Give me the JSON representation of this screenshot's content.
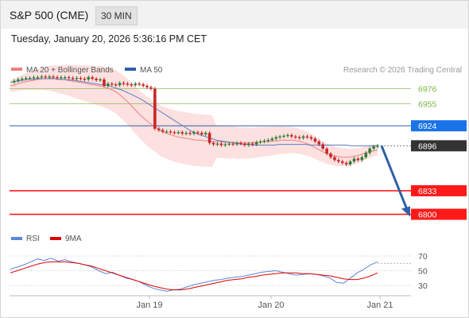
{
  "header": {
    "title": "S&P 500 (CME)",
    "timeframe": "30 MIN"
  },
  "datetime": "Tuesday, January 20, 2026 5:36:16 PM CET",
  "legend": {
    "items": [
      {
        "label": "MA 20 + Bollinger Bands",
        "color": "#f08080"
      },
      {
        "label": "MA 50",
        "color": "#2f5fa8"
      }
    ],
    "credit": "Research © 2026 Trading Central"
  },
  "rsi_legend": {
    "items": [
      {
        "label": "RSI",
        "color": "#5b86d6"
      },
      {
        "label": "9MA",
        "color": "#e00000"
      }
    ]
  },
  "colors": {
    "up": "#2e7d32",
    "down": "#c62828",
    "support": "#ff1a1a",
    "resistance": "#7cb342",
    "pivot": "#2f5fa8",
    "current": "#333333",
    "forecast_arrow": "#2f5fa8",
    "bollinger_fill": "#fde0e0"
  },
  "chart_data": [
    {
      "type": "candlestick",
      "title": "S&P 500 (CME)",
      "ylim": [
        6785,
        6990
      ],
      "x_tick_labels": [
        "Jan 19",
        "Jan 20",
        "Jan 21"
      ],
      "levels": [
        {
          "label": "6976",
          "value": 6976,
          "kind": "resistance"
        },
        {
          "label": "6955",
          "value": 6955,
          "kind": "resistance"
        },
        {
          "label": "6924",
          "value": 6924,
          "kind": "pivot"
        },
        {
          "label": "6896",
          "value": 6896,
          "kind": "current"
        },
        {
          "label": "6833",
          "value": 6833,
          "kind": "support"
        },
        {
          "label": "6800",
          "value": 6800,
          "kind": "support"
        }
      ],
      "forecast": {
        "from": 6896,
        "to": 6800,
        "direction": "down"
      },
      "close_series": [
        6985,
        6987,
        6989,
        6990,
        6991,
        6991,
        6992,
        6992,
        6993,
        6992,
        6993,
        6992,
        6991,
        6992,
        6992,
        6991,
        6990,
        6991,
        6990,
        6989,
        6992,
        6990,
        6988,
        6989,
        6980,
        6983,
        6982,
        6981,
        6984,
        6983,
        6982,
        6981,
        6983,
        6982,
        6980,
        6978,
        6976,
        6920,
        6918,
        6916,
        6916,
        6915,
        6914,
        6915,
        6913,
        6914,
        6913,
        6915,
        6914,
        6912,
        6914,
        6900,
        6898,
        6899,
        6897,
        6898,
        6899,
        6898,
        6900,
        6899,
        6897,
        6899,
        6898,
        6901,
        6902,
        6903,
        6904,
        6906,
        6908,
        6909,
        6910,
        6911,
        6909,
        6908,
        6907,
        6909,
        6908,
        6906,
        6902,
        6898,
        6892,
        6885,
        6880,
        6876,
        6874,
        6872,
        6870,
        6874,
        6878,
        6876,
        6880,
        6886,
        6892,
        6895,
        6896
      ],
      "ma20": [
        6980,
        6981,
        6983,
        6985,
        6986,
        6987,
        6988,
        6989,
        6990,
        6990,
        6991,
        6990,
        6989,
        6989,
        6988,
        6987,
        6986,
        6985,
        6984,
        6983,
        6982,
        6981,
        6980,
        6979,
        6977,
        6975,
        6972,
        6968,
        6963,
        6958,
        6952,
        6946,
        6940,
        6935,
        6930,
        6926,
        6922,
        6918,
        6915,
        6913,
        6911,
        6909,
        6908,
        6907,
        6906,
        6905,
        6904,
        6904,
        6903,
        6903,
        6902,
        6902,
        6902,
        6901,
        6901,
        6901,
        6900,
        6900,
        6900,
        6900,
        6900,
        6901,
        6901,
        6902,
        6902,
        6903,
        6903,
        6904,
        6904,
        6904,
        6904,
        6903,
        6902,
        6900,
        6898,
        6895,
        6892,
        6889,
        6886,
        6884,
        6882,
        6881,
        6880,
        6880,
        6880,
        6881,
        6882,
        6884,
        6886,
        6888,
        6889,
        6890
      ],
      "ma50": [
        6985,
        6986,
        6987,
        6988,
        6989,
        6989,
        6990,
        6990,
        6990,
        6990,
        6990,
        6989,
        6989,
        6988,
        6988,
        6987,
        6986,
        6985,
        6984,
        6983,
        6982,
        6981,
        6980,
        6978,
        6976,
        6974,
        6971,
        6968,
        6965,
        6962,
        6958,
        6954,
        6950,
        6946,
        6942,
        6938,
        6934,
        6930,
        6926,
        6922,
        6918,
        6915,
        6912,
        6910,
        6908,
        6906,
        6904,
        6903,
        6902,
        6901,
        6900,
        6899,
        6898,
        6898,
        6897,
        6897,
        6897,
        6897,
        6897,
        6897,
        6898,
        6898,
        6898,
        6898,
        6898,
        6898,
        6898,
        6897,
        6897,
        6897,
        6897,
        6897,
        6897,
        6897,
        6897,
        6897,
        6896,
        6896,
        6896,
        6896,
        6896,
        6896,
        6896
      ]
    },
    {
      "type": "line",
      "title": "",
      "ylim": [
        20,
        80
      ],
      "y_tick_labels": [
        "70",
        "50",
        "30"
      ],
      "reference_level": 60,
      "series": [
        {
          "name": "RSI",
          "values": [
            52,
            55,
            58,
            62,
            66,
            64,
            67,
            63,
            65,
            62,
            60,
            58,
            55,
            50,
            46,
            48,
            44,
            40,
            38,
            35,
            30,
            26,
            24,
            22,
            24,
            25,
            28,
            31,
            33,
            35,
            37,
            38,
            40,
            41,
            42,
            44,
            46,
            48,
            49,
            50,
            48,
            46,
            44,
            45,
            46,
            45,
            43,
            40,
            34,
            33,
            40,
            47,
            52,
            58,
            62
          ]
        },
        {
          "name": "9MA",
          "values": [
            47,
            50,
            53,
            56,
            59,
            61,
            62,
            62,
            62,
            61,
            60,
            58,
            56,
            53,
            50,
            47,
            44,
            41,
            38,
            35,
            32,
            29,
            27,
            25,
            24,
            24,
            25,
            27,
            29,
            31,
            33,
            35,
            37,
            38,
            39,
            41,
            42,
            44,
            45,
            46,
            47,
            47,
            47,
            46,
            46,
            45,
            44,
            43,
            41,
            39,
            38,
            38,
            40,
            43,
            47
          ]
        }
      ]
    }
  ]
}
